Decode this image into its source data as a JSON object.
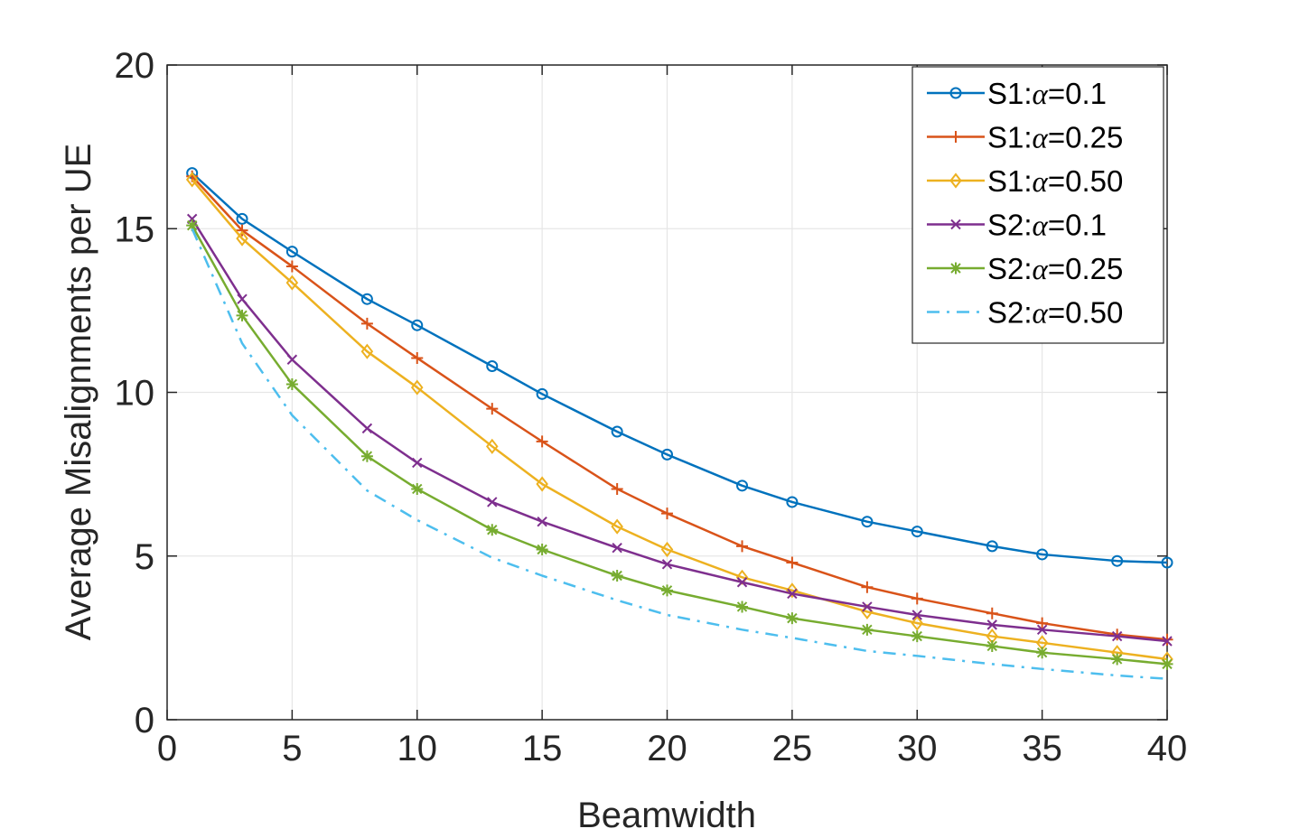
{
  "chart_data": {
    "type": "line",
    "title": "",
    "xlabel": "Beamwidth",
    "ylabel": "Average Misalignments per UE",
    "xlim": [
      0,
      40
    ],
    "ylim": [
      0,
      20
    ],
    "xticks": [
      0,
      5,
      10,
      15,
      20,
      25,
      30,
      35,
      40
    ],
    "yticks": [
      0,
      5,
      10,
      15,
      20
    ],
    "grid": true,
    "legend_position": "top-right",
    "x": [
      1,
      3,
      5,
      8,
      10,
      13,
      15,
      18,
      20,
      23,
      25,
      28,
      30,
      33,
      35,
      38,
      40
    ],
    "series": [
      {
        "name": "S1:α=0.1",
        "legend_prefix": "S1:",
        "legend_symbol": "α",
        "legend_suffix": "=0.1",
        "color": "#0072BD",
        "marker": "circle",
        "dash": "",
        "values": [
          16.7,
          15.3,
          14.3,
          12.85,
          12.05,
          10.8,
          9.95,
          8.8,
          8.1,
          7.15,
          6.65,
          6.05,
          5.75,
          5.3,
          5.05,
          4.85,
          4.8
        ]
      },
      {
        "name": "S1:α=0.25",
        "legend_prefix": "S1:",
        "legend_symbol": "α",
        "legend_suffix": "=0.25",
        "color": "#D95319",
        "marker": "plus",
        "dash": "",
        "values": [
          16.6,
          14.95,
          13.85,
          12.1,
          11.05,
          9.5,
          8.5,
          7.05,
          6.3,
          5.3,
          4.8,
          4.05,
          3.7,
          3.25,
          2.95,
          2.6,
          2.45
        ]
      },
      {
        "name": "S1:α=0.50",
        "legend_prefix": "S1:",
        "legend_symbol": "α",
        "legend_suffix": "=0.50",
        "color": "#EDB120",
        "marker": "diamond",
        "dash": "",
        "values": [
          16.5,
          14.7,
          13.35,
          11.25,
          10.15,
          8.35,
          7.2,
          5.9,
          5.2,
          4.35,
          3.95,
          3.3,
          2.95,
          2.55,
          2.35,
          2.05,
          1.85
        ]
      },
      {
        "name": "S2:α=0.1",
        "legend_prefix": "S2:",
        "legend_symbol": "α",
        "legend_suffix": "=0.1",
        "color": "#7E2F8E",
        "marker": "x",
        "dash": "",
        "values": [
          15.3,
          12.85,
          11.0,
          8.9,
          7.85,
          6.65,
          6.05,
          5.25,
          4.75,
          4.2,
          3.85,
          3.45,
          3.2,
          2.9,
          2.75,
          2.55,
          2.4
        ]
      },
      {
        "name": "S2:α=0.25",
        "legend_prefix": "S2:",
        "legend_symbol": "α",
        "legend_suffix": "=0.25",
        "color": "#77AC30",
        "marker": "star",
        "dash": "",
        "values": [
          15.1,
          12.35,
          10.25,
          8.05,
          7.05,
          5.8,
          5.2,
          4.4,
          3.95,
          3.45,
          3.1,
          2.75,
          2.55,
          2.25,
          2.05,
          1.85,
          1.7
        ]
      },
      {
        "name": "S2:α=0.50",
        "legend_prefix": "S2:",
        "legend_symbol": "α",
        "legend_suffix": "=0.50",
        "color": "#4DBEEE",
        "marker": "none",
        "dash": "14 8 3 8",
        "values": [
          15.0,
          11.5,
          9.3,
          7.0,
          6.1,
          4.95,
          4.4,
          3.65,
          3.2,
          2.75,
          2.5,
          2.1,
          1.95,
          1.7,
          1.55,
          1.35,
          1.25
        ]
      }
    ]
  }
}
